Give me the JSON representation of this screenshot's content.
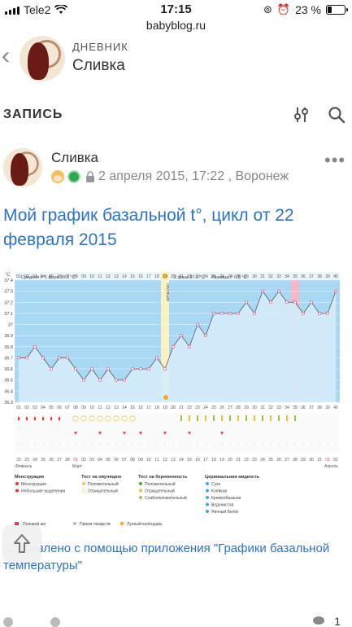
{
  "status_bar": {
    "carrier": "Tele2",
    "time": "17:15",
    "battery": "23 %",
    "battery_level": 0.23
  },
  "browser": {
    "url": "babyblog.ru"
  },
  "blog": {
    "kicker": "ДНЕВНИК",
    "name": "Сливка"
  },
  "section": {
    "title": "ЗАПИСЬ"
  },
  "post": {
    "author": "Сливка",
    "date": "2 апреля 2015, 17:22 , Воронеж",
    "title": "Мой график базальной t°, цикл от 22 февраля 2015",
    "caption": "Составлено с помощью приложения \"Графики базальной температуры\"",
    "views": "1"
  },
  "chart_data": {
    "type": "line",
    "title": "",
    "ylabel": "°C",
    "ylim": [
      36.3,
      37.4
    ],
    "yticks": [
      "36.3",
      "36.4",
      "36.5",
      "36.6",
      "36.7",
      "36.8",
      "36.9",
      "37",
      "37.1",
      "37.2",
      "37.3",
      "37.4"
    ],
    "header": {
      "phase1": "Средняя t° 1 фаза 36.6 °C",
      "phase2": "2 фаза 37.1 °C",
      "diff": "Разница t° 0.5 °C",
      "ovulation_label": "овуляция"
    },
    "days": [
      "01",
      "02",
      "03",
      "04",
      "05",
      "06",
      "07",
      "08",
      "09",
      "10",
      "11",
      "12",
      "13",
      "14",
      "15",
      "16",
      "17",
      "18",
      "19",
      "20",
      "21",
      "22",
      "23",
      "24",
      "25",
      "26",
      "27",
      "28",
      "29",
      "30",
      "31",
      "32",
      "33",
      "34",
      "35",
      "36",
      "37",
      "38",
      "39",
      "40"
    ],
    "dates": [
      "22",
      "23",
      "24",
      "25",
      "26",
      "27",
      "28",
      "01",
      "02",
      "03",
      "04",
      "05",
      "06",
      "07",
      "08",
      "09",
      "10",
      "11",
      "12",
      "13",
      "14",
      "15",
      "16",
      "17",
      "18",
      "19",
      "20",
      "21",
      "22",
      "23",
      "24",
      "25",
      "26",
      "27",
      "28",
      "29",
      "30",
      "31",
      "01",
      "02"
    ],
    "series": [
      {
        "name": "",
        "values": [
          36.7,
          36.7,
          36.8,
          36.7,
          36.6,
          36.7,
          36.7,
          36.6,
          36.5,
          36.6,
          36.5,
          36.6,
          36.5,
          36.5,
          36.6,
          36.6,
          36.6,
          36.7,
          36.6,
          36.8,
          36.9,
          36.8,
          37.0,
          36.9,
          37.1,
          37.1,
          37.1,
          37.1,
          37.2,
          37.1,
          37.3,
          37.2,
          37.3,
          37.2,
          37.2,
          37.1,
          37.2,
          37.1,
          37.1,
          37.3
        ]
      }
    ],
    "ovulation_day": "19",
    "today_day": "35",
    "month_labels": [
      "Февраль",
      "Март",
      "Апрель"
    ],
    "legend": {
      "cols": [
        {
          "title": "Менструация",
          "items": [
            "Менструация",
            "Небольшие выделения"
          ]
        },
        {
          "title": "Тест на овуляцию",
          "items": [
            "Положительный",
            "Отрицательный"
          ]
        },
        {
          "title": "Тест на беременность",
          "items": [
            "Положительный",
            "Отрицательный",
            "Слабоположительный"
          ]
        },
        {
          "title": "Цервикальная жидкость",
          "items": [
            "Сухо",
            "Клейкая",
            "Кремообразная",
            "Водянистая",
            "Яичный белок"
          ]
        }
      ],
      "footer": [
        "Половой акт",
        "Прием лекарств",
        "Лунный календарь"
      ]
    },
    "colors": {
      "plot_bg": "#a9d8f5",
      "fill": "#d5ecfa",
      "line": "#5a5a5a",
      "ovulation": "#fbf1c2",
      "today": "#f4b8c8",
      "accent_pink": "#e8357a"
    }
  }
}
